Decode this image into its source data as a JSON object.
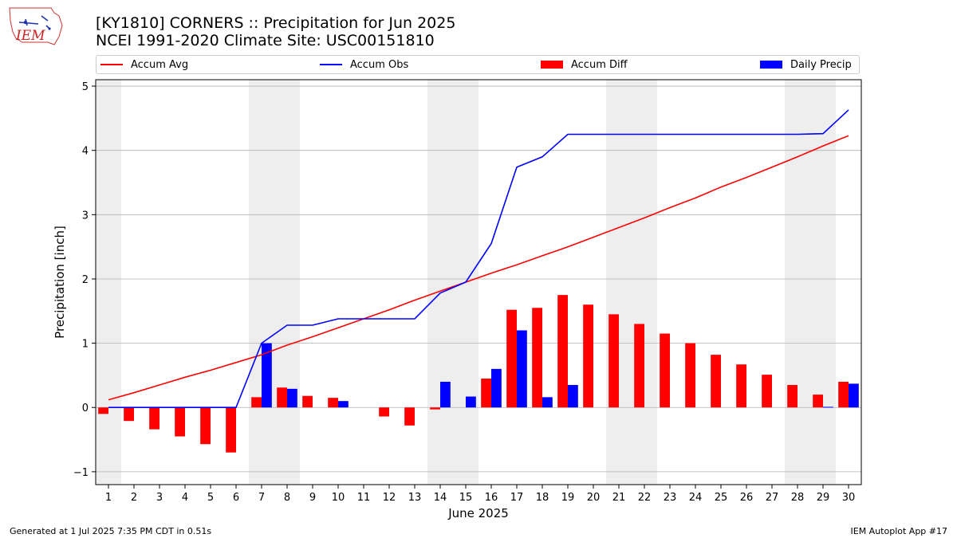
{
  "header": {
    "title_line1": "[KY1810] CORNERS :: Precipitation for Jun 2025",
    "title_line2": "NCEI 1991-2020 Climate Site: USC00151810",
    "logo_text": "IEM"
  },
  "footer": {
    "generated": "Generated at 1 Jul 2025 7:35 PM CDT in 0.51s",
    "app": "IEM Autoplot App #17"
  },
  "colors": {
    "avg": "#ff0000",
    "obs": "#0000ff",
    "diff": "#ff0000",
    "daily": "#0000ff",
    "weekend_band": "#eeeeee",
    "grid": "#b0b0b0"
  },
  "chart_data": {
    "type": "bar",
    "xlabel": "June 2025",
    "ylabel": "Precipitation [inch]",
    "xlim": [
      0.5,
      30.5
    ],
    "ylim": [
      -1.2,
      5.1
    ],
    "yticks": [
      -1,
      0,
      1,
      2,
      3,
      4,
      5
    ],
    "grid": "y",
    "legend_placement": "top",
    "days": [
      1,
      2,
      3,
      4,
      5,
      6,
      7,
      8,
      9,
      10,
      11,
      12,
      13,
      14,
      15,
      16,
      17,
      18,
      19,
      20,
      21,
      22,
      23,
      24,
      25,
      26,
      27,
      28,
      29,
      30
    ],
    "weekend_days": [
      1,
      7,
      8,
      14,
      15,
      21,
      22,
      28,
      29
    ],
    "series": [
      {
        "name": "Accum Avg",
        "kind": "line",
        "values": [
          0.12,
          0.23,
          0.35,
          0.47,
          0.58,
          0.7,
          0.82,
          0.97,
          1.1,
          1.24,
          1.38,
          1.52,
          1.67,
          1.81,
          1.95,
          2.09,
          2.22,
          2.36,
          2.5,
          2.65,
          2.8,
          2.95,
          3.11,
          3.26,
          3.43,
          3.58,
          3.74,
          3.9,
          4.07,
          4.23
        ]
      },
      {
        "name": "Accum Obs",
        "kind": "line",
        "values": [
          0,
          0,
          0,
          0,
          0,
          0,
          1.0,
          1.28,
          1.28,
          1.38,
          1.38,
          1.38,
          1.38,
          1.78,
          1.95,
          2.55,
          3.74,
          3.9,
          4.25,
          4.25,
          4.25,
          4.25,
          4.25,
          4.25,
          4.25,
          4.25,
          4.25,
          4.25,
          4.26,
          4.63
        ]
      },
      {
        "name": "Accum Diff",
        "kind": "bar",
        "values": [
          -0.1,
          -0.21,
          -0.34,
          -0.45,
          -0.57,
          -0.7,
          0.16,
          0.31,
          0.18,
          0.15,
          0,
          -0.14,
          -0.28,
          -0.03,
          0,
          0.45,
          1.52,
          1.55,
          1.75,
          1.6,
          1.45,
          1.3,
          1.15,
          1.0,
          0.82,
          0.67,
          0.51,
          0.35,
          0.2,
          0.4
        ]
      },
      {
        "name": "Daily Precip",
        "kind": "bar",
        "values": [
          0,
          0,
          0,
          0,
          0,
          0,
          1.0,
          0.29,
          0,
          0.1,
          0,
          0,
          0,
          0.4,
          0.17,
          0.6,
          1.2,
          0.16,
          0.35,
          0,
          0,
          0,
          0,
          0,
          0,
          0,
          0,
          0,
          0.01,
          0.37
        ]
      }
    ]
  }
}
